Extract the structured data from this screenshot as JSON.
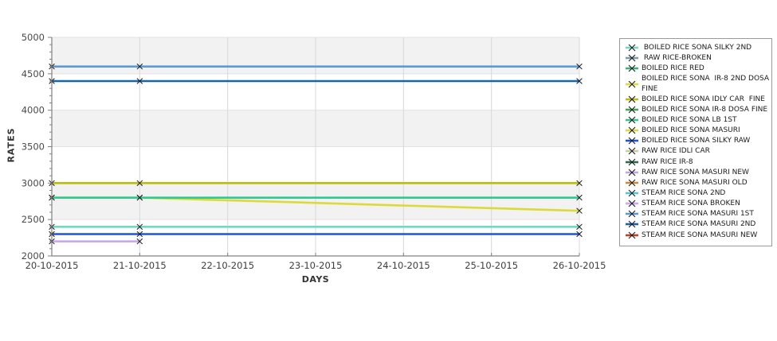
{
  "chart_data": {
    "type": "line",
    "title": "",
    "xlabel": "DAYS",
    "ylabel": "RATES",
    "x_categories": [
      "20-10-2015",
      "21-10-2015",
      "22-10-2015",
      "23-10-2015",
      "24-10-2015",
      "25-10-2015",
      "26-10-2015"
    ],
    "y_ticks": [
      2000,
      2500,
      3000,
      3500,
      4000,
      4500,
      5000
    ],
    "ylim": [
      2000,
      5000
    ],
    "grid": true,
    "legend_position": "right",
    "marker": "x",
    "series": [
      {
        "label": "STEAM RICE SONA MASURI 1ST",
        "color": "#5B9BD5",
        "x": [
          "20-10-2015",
          "21-10-2015",
          "26-10-2015"
        ],
        "values": [
          4600,
          4600,
          4600
        ]
      },
      {
        "label": "STEAM RICE SONA MASURI 2ND",
        "color": "#1566A9",
        "x": [
          "20-10-2015",
          "21-10-2015",
          "26-10-2015"
        ],
        "values": [
          4400,
          4400,
          4400
        ]
      },
      {
        "label": "BOILED RICE SONA IDLY CAR  FINE",
        "color": "#BDBD0B",
        "x": [
          "20-10-2015",
          "21-10-2015",
          "26-10-2015"
        ],
        "values": [
          3000,
          3000,
          3000
        ]
      },
      {
        "label": "BOILED RICE SONA MASURI",
        "color": "#DCDA38",
        "x": [
          "20-10-2015",
          "21-10-2015",
          "26-10-2015"
        ],
        "values": [
          2800,
          2800,
          2620
        ]
      },
      {
        "label": "BOILED RICE SONA LB 1ST",
        "color": "#2EC98E",
        "x": [
          "20-10-2015",
          "21-10-2015",
          "26-10-2015"
        ],
        "values": [
          2800,
          2800,
          2800
        ]
      },
      {
        "label": "BOILED RICE SONA SILKY 2ND",
        "color": "#6FD9C2",
        "x": [
          "20-10-2015",
          "21-10-2015",
          "26-10-2015"
        ],
        "values": [
          2400,
          2400,
          2400
        ]
      },
      {
        "label": "BOILED RICE SONA SILKY RAW",
        "color": "#1D55D8",
        "x": [
          "20-10-2015",
          "21-10-2015",
          "26-10-2015"
        ],
        "values": [
          2300,
          2300,
          2300
        ]
      },
      {
        "label": "STEAM RICE SONA BROKEN",
        "color": "#C4ABEF",
        "x": [
          "20-10-2015",
          "21-10-2015"
        ],
        "values": [
          2200,
          2200
        ]
      }
    ],
    "legend": {
      "items": [
        {
          "label": " BOILED RICE SONA SILKY 2ND",
          "color": "#6FD9C2"
        },
        {
          "label": " RAW RICE-BROKEN",
          "color": "#7D9CAA"
        },
        {
          "label": "BOILED RICE RED",
          "color": "#35B57C"
        },
        {
          "label": "BOILED RICE SONA  IR-8 2ND DOSA FINE",
          "color": "#E0DC3C"
        },
        {
          "label": "BOILED RICE SONA IDLY CAR  FINE",
          "color": "#BDBD0B"
        },
        {
          "label": "BOILED RICE SONA IR-8 DOSA FINE",
          "color": "#3FA957"
        },
        {
          "label": "BOILED RICE SONA LB 1ST",
          "color": "#2EC98E"
        },
        {
          "label": "BOILED RICE SONA MASURI",
          "color": "#DCDA38"
        },
        {
          "label": "BOILED RICE SONA SILKY RAW",
          "color": "#1D55D8"
        },
        {
          "label": "RAW RICE IDLI CAR",
          "color": "#C2CFA9"
        },
        {
          "label": "RAW RICE IR-8",
          "color": "#2F6B50"
        },
        {
          "label": "RAW RICE SONA MASURI NEW",
          "color": "#C3A4E6"
        },
        {
          "label": "RAW RICE SONA MASURI OLD",
          "color": "#D08A2E"
        },
        {
          "label": "STEAM RICE SONA 2ND",
          "color": "#4FC9D9"
        },
        {
          "label": "STEAM RICE SONA BROKEN",
          "color": "#C4ABEF"
        },
        {
          "label": "STEAM RICE SONA MASURI 1ST",
          "color": "#5B9BD5"
        },
        {
          "label": "STEAM RICE SONA MASURI 2ND",
          "color": "#1566A9"
        },
        {
          "label": "STEAM RICE SONA MASURI NEW",
          "color": "#C33E1F"
        }
      ]
    }
  }
}
